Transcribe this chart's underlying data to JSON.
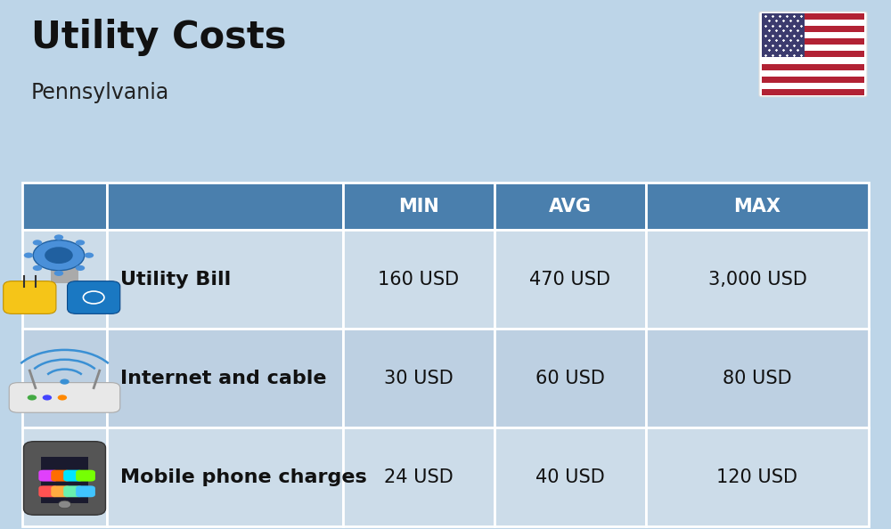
{
  "title": "Utility Costs",
  "subtitle": "Pennsylvania",
  "background_color": "#bdd5e8",
  "header_bg_color": "#4a7fad",
  "header_text_color": "#ffffff",
  "row_bg_color_1": "#ccdce9",
  "row_bg_color_2": "#bdd0e2",
  "table_border_color": "#ffffff",
  "columns": [
    "",
    "",
    "MIN",
    "AVG",
    "MAX"
  ],
  "rows": [
    {
      "label": "Utility Bill",
      "min": "160 USD",
      "avg": "470 USD",
      "max": "3,000 USD",
      "icon": "utility"
    },
    {
      "label": "Internet and cable",
      "min": "30 USD",
      "avg": "60 USD",
      "max": "80 USD",
      "icon": "internet"
    },
    {
      "label": "Mobile phone charges",
      "min": "24 USD",
      "avg": "40 USD",
      "max": "120 USD",
      "icon": "mobile"
    }
  ],
  "title_fontsize": 30,
  "subtitle_fontsize": 17,
  "header_fontsize": 15,
  "cell_fontsize": 15,
  "label_fontsize": 16
}
